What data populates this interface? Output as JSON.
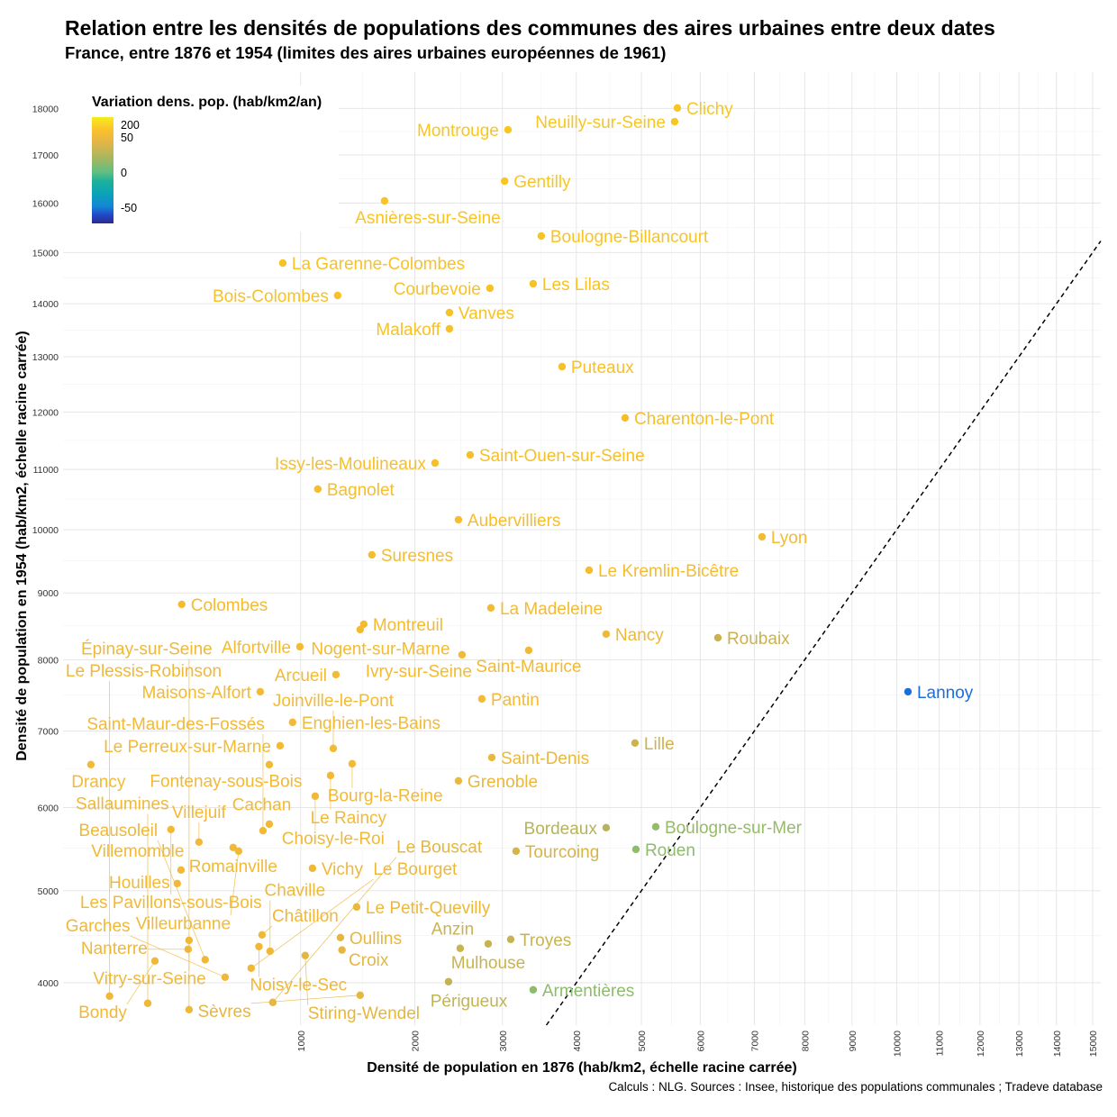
{
  "chart_data": {
    "type": "scatter",
    "title": "Relation entre les densités de populations des communes des aires urbaines entre deux dates",
    "subtitle": "France, entre 1876 et 1954 (limites des aires urbaines européennes de 1961)",
    "xlabel": "Densité de population en 1876 (hab/km2, échelle racine carrée)",
    "ylabel": "Densité de population en 1954 (hab/km2, échelle racine carrée)",
    "caption": "Calculs : NLG. Sources : Insee, historique des populations communales ; Tradeve database",
    "x_scale": "sqrt",
    "y_scale": "sqrt",
    "xlim": [
      19,
      15230
    ],
    "ylim": [
      3577,
      18800
    ],
    "x_ticks": [
      1000,
      2000,
      3000,
      4000,
      5000,
      6000,
      7000,
      8000,
      9000,
      10000,
      11000,
      12000,
      13000,
      14000,
      15000
    ],
    "y_ticks": [
      4000,
      5000,
      6000,
      7000,
      8000,
      9000,
      10000,
      11000,
      12000,
      13000,
      14000,
      15000,
      16000,
      17000,
      18000
    ],
    "grid": true,
    "reference_line": "y = x (dashed)",
    "legend": {
      "title": "Variation dens. pop. (hab/km2/an)",
      "placement": "top-left",
      "labels": [
        "200",
        "50",
        "0",
        "-50"
      ]
    },
    "points": [
      {
        "label": "Clichy",
        "x": 5600,
        "y": 18010,
        "color": "#f7c623"
      },
      {
        "label": "Neuilly-sur-Seine",
        "x": 5553,
        "y": 17713,
        "color": "#f7c623"
      },
      {
        "label": "Montrouge",
        "x": 3069,
        "y": 17538,
        "color": "#f7c623"
      },
      {
        "label": "Gentilly",
        "x": 3027,
        "y": 16453,
        "color": "#f7c623"
      },
      {
        "label": "Asnières-sur-Seine",
        "x": 1701,
        "y": 16044,
        "color": "#f7c425"
      },
      {
        "label": "Boulogne-Billancourt",
        "x": 3507,
        "y": 15330,
        "color": "#f7c425"
      },
      {
        "label": "La Garenne-Colombes",
        "x": 874,
        "y": 14792,
        "color": "#f7c226"
      },
      {
        "label": "Les Lilas",
        "x": 3398,
        "y": 14386,
        "color": "#f7c226"
      },
      {
        "label": "Courbevoie",
        "x": 2844,
        "y": 14299,
        "color": "#f7c226"
      },
      {
        "label": "Bois-Colombes",
        "x": 1286,
        "y": 14159,
        "color": "#f7c226"
      },
      {
        "label": "Vanves",
        "x": 2370,
        "y": 13831,
        "color": "#f7c226"
      },
      {
        "label": "Malakoff",
        "x": 2370,
        "y": 13523,
        "color": "#f7c226"
      },
      {
        "label": "Puteaux",
        "x": 3795,
        "y": 12819,
        "color": "#f7c028"
      },
      {
        "label": "Charenton-le-Pont",
        "x": 4739,
        "y": 11894,
        "color": "#f6bf2a"
      },
      {
        "label": "Saint-Ouen-sur-Seine",
        "x": 2607,
        "y": 11249,
        "color": "#f6bf2a"
      },
      {
        "label": "Issy-les-Moulineaux",
        "x": 2212,
        "y": 11110,
        "color": "#f6bf2a"
      },
      {
        "label": "Bagnolet",
        "x": 1128,
        "y": 10668,
        "color": "#f6bd2c"
      },
      {
        "label": "Aubervilliers",
        "x": 2472,
        "y": 10161,
        "color": "#f6bd2c"
      },
      {
        "label": "Lyon",
        "x": 7148,
        "y": 9884,
        "color": "#f2bb33"
      },
      {
        "label": "Suresnes",
        "x": 1583,
        "y": 9595,
        "color": "#f5bc2e"
      },
      {
        "label": "Le Kremlin-Bicêtre",
        "x": 4187,
        "y": 9353,
        "color": "#f5bc2e"
      },
      {
        "label": "Colombes",
        "x": 323,
        "y": 8824,
        "color": "#f5bb30"
      },
      {
        "label": "La Madeleine",
        "x": 2856,
        "y": 8770,
        "color": "#f3bb32"
      },
      {
        "label": "Montreuil",
        "x": 1510,
        "y": 8525,
        "color": "#f5bb30"
      },
      {
        "label": "Nogent-sur-Marne",
        "x": 1478,
        "y": 8444,
        "color": "#f5bb30"
      },
      {
        "label": "Nancy",
        "x": 4444,
        "y": 8377,
        "color": "#efb938"
      },
      {
        "label": "Roubaix",
        "x": 6318,
        "y": 8323,
        "color": "#c9b24f"
      },
      {
        "label": "Alfortville",
        "x": 994,
        "y": 8191,
        "color": "#f5bb30"
      },
      {
        "label": "Saint-Maurice",
        "x": 3338,
        "y": 8138,
        "color": "#f2ba34"
      },
      {
        "label": "Ivry-sur-Seine",
        "x": 2513,
        "y": 8073,
        "color": "#f2ba34"
      },
      {
        "label": "Arcueil",
        "x": 1272,
        "y": 7786,
        "color": "#f3ba33"
      },
      {
        "label": "Lannoy",
        "x": 10260,
        "y": 7543,
        "color": "#1a6fdf"
      },
      {
        "label": "Maisons-Alfort",
        "x": 728,
        "y": 7543,
        "color": "#f3ba33"
      },
      {
        "label": "Pantin",
        "x": 2746,
        "y": 7442,
        "color": "#f2ba35"
      },
      {
        "label": "Enghien-les-Bains",
        "x": 942,
        "y": 7118,
        "color": "#f3ba34"
      },
      {
        "label": "Lille",
        "x": 4896,
        "y": 6838,
        "color": "#d0b24c"
      },
      {
        "label": "Le Perreux-sur-Marne",
        "x": 856,
        "y": 6801,
        "color": "#f3ba34"
      },
      {
        "label": "Joinville-le-Pont",
        "x": 1250,
        "y": 6765,
        "color": "#f3ba34"
      },
      {
        "label": "Saint-Denis",
        "x": 2867,
        "y": 6645,
        "color": "#eab83c"
      },
      {
        "label": "Drancy",
        "x": 57,
        "y": 6551,
        "color": "#f3ba34"
      },
      {
        "label": "Bourg-la-Reine",
        "x": 1408,
        "y": 6562,
        "color": "#f2b935"
      },
      {
        "label": "Fontenay-sous-Bois",
        "x": 785,
        "y": 6551,
        "color": "#f2b935"
      },
      {
        "label": "Le Raincy",
        "x": 1228,
        "y": 6409,
        "color": "#f2b935"
      },
      {
        "label": "Grenoble",
        "x": 2472,
        "y": 6340,
        "color": "#e9b83d"
      },
      {
        "label": "Choisy-le-Roi",
        "x": 1108,
        "y": 6143,
        "color": "#f2b936"
      },
      {
        "label": "Cachan",
        "x": 785,
        "y": 5793,
        "color": "#f2b936"
      },
      {
        "label": "Les Pavillons-sous-Bois",
        "x": 280,
        "y": 5727,
        "color": "#f2b936"
      },
      {
        "label": "Saint-Maur-des-Fossés",
        "x": 745,
        "y": 5712,
        "color": "#f2b936"
      },
      {
        "label": "Bordeaux",
        "x": 4444,
        "y": 5749,
        "color": "#b6b45a"
      },
      {
        "label": "Boulogne-sur-Mer",
        "x": 5235,
        "y": 5760,
        "color": "#96bb68"
      },
      {
        "label": "Villejuif",
        "x": 398,
        "y": 5573,
        "color": "#f1b937"
      },
      {
        "label": "Romainville",
        "x": 570,
        "y": 5508,
        "color": "#f1b937"
      },
      {
        "label": "Villeurbanne",
        "x": 600,
        "y": 5464,
        "color": "#f1b937"
      },
      {
        "label": "Tourcoing",
        "x": 3173,
        "y": 5464,
        "color": "#d6b44a"
      },
      {
        "label": "Rouen",
        "x": 4911,
        "y": 5486,
        "color": "#8dbc6c"
      },
      {
        "label": "Vichy",
        "x": 1087,
        "y": 5261,
        "color": "#efb839"
      },
      {
        "label": "Villemomble",
        "x": 320,
        "y": 5240,
        "color": "#f1b937"
      },
      {
        "label": "Houilles",
        "x": 305,
        "y": 5083,
        "color": "#f1b937"
      },
      {
        "label": "Le Petit-Quevilly",
        "x": 1447,
        "y": 4815,
        "color": "#ebb83c"
      },
      {
        "label": "Châtillon",
        "x": 739,
        "y": 4506,
        "color": "#efb839"
      },
      {
        "label": "Oullins",
        "x": 1309,
        "y": 4477,
        "color": "#e6b740"
      },
      {
        "label": "Troyes",
        "x": 3104,
        "y": 4457,
        "color": "#c7b451"
      },
      {
        "label": "Vitry-sur-Seine",
        "x": 354,
        "y": 4447,
        "color": "#efb839"
      },
      {
        "label": "Mulhouse",
        "x": 2823,
        "y": 4409,
        "color": "#c7b451"
      },
      {
        "label": "Nanterre",
        "x": 350,
        "y": 4351,
        "color": "#efb839"
      },
      {
        "label": "Noisy-le-Sec",
        "x": 720,
        "y": 4380,
        "color": "#efb839"
      },
      {
        "label": "Chaville",
        "x": 790,
        "y": 4330,
        "color": "#efb839"
      },
      {
        "label": "Croix",
        "x": 1322,
        "y": 4343,
        "color": "#e6b740"
      },
      {
        "label": "Anzin",
        "x": 2492,
        "y": 4361,
        "color": "#c9b450"
      },
      {
        "label": "Stiring-Wendel",
        "x": 1033,
        "y": 4284,
        "color": "#e6b740"
      },
      {
        "label": "Bondy",
        "x": 222,
        "y": 4226,
        "color": "#efb839"
      },
      {
        "label": "Beausoleil",
        "x": 427,
        "y": 4240,
        "color": "#efb839"
      },
      {
        "label": "Le Bourget",
        "x": 673,
        "y": 4151,
        "color": "#efb839"
      },
      {
        "label": "Garches",
        "x": 527,
        "y": 4057,
        "color": "#efb839"
      },
      {
        "label": "Périgueux",
        "x": 2360,
        "y": 4011,
        "color": "#c3b453"
      },
      {
        "label": "Armentières",
        "x": 3398,
        "y": 3928,
        "color": "#8dbc6c"
      },
      {
        "label": "Sèvres",
        "x": 1478,
        "y": 3873,
        "color": "#e6b740"
      },
      {
        "label": "Le Plessis-Robinson",
        "x": 94,
        "y": 3864,
        "color": "#efb839"
      },
      {
        "label": "Sallaumines",
        "x": 198,
        "y": 3792,
        "color": "#efb839"
      },
      {
        "label": "Le Bouscat",
        "x": 808,
        "y": 3801,
        "color": "#e6b740"
      },
      {
        "label": "Épinay-sur-Seine",
        "x": 354,
        "y": 3729,
        "color": "#efb839"
      }
    ]
  }
}
